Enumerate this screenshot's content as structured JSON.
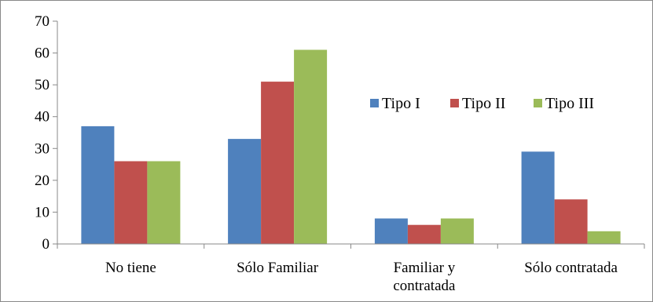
{
  "chart_data": {
    "type": "bar",
    "title": "",
    "xlabel": "",
    "ylabel": "",
    "ylim": [
      0,
      70
    ],
    "ytick_step": 10,
    "yticks": [
      "0",
      "10",
      "20",
      "30",
      "40",
      "50",
      "60",
      "70"
    ],
    "grid": false,
    "legend_position": "right",
    "categories": [
      [
        "No tiene"
      ],
      [
        "Sólo Familiar"
      ],
      [
        "Familiar y",
        "contratada"
      ],
      [
        "Sólo contratada"
      ]
    ],
    "series": [
      {
        "name": "Tipo I",
        "color": "#4F81BD",
        "values": [
          37,
          33,
          8,
          29
        ]
      },
      {
        "name": "Tipo II",
        "color": "#C0504D",
        "values": [
          26,
          51,
          6,
          14
        ]
      },
      {
        "name": "Tipo III",
        "color": "#9BBB59",
        "values": [
          26,
          61,
          8,
          4
        ]
      }
    ]
  }
}
